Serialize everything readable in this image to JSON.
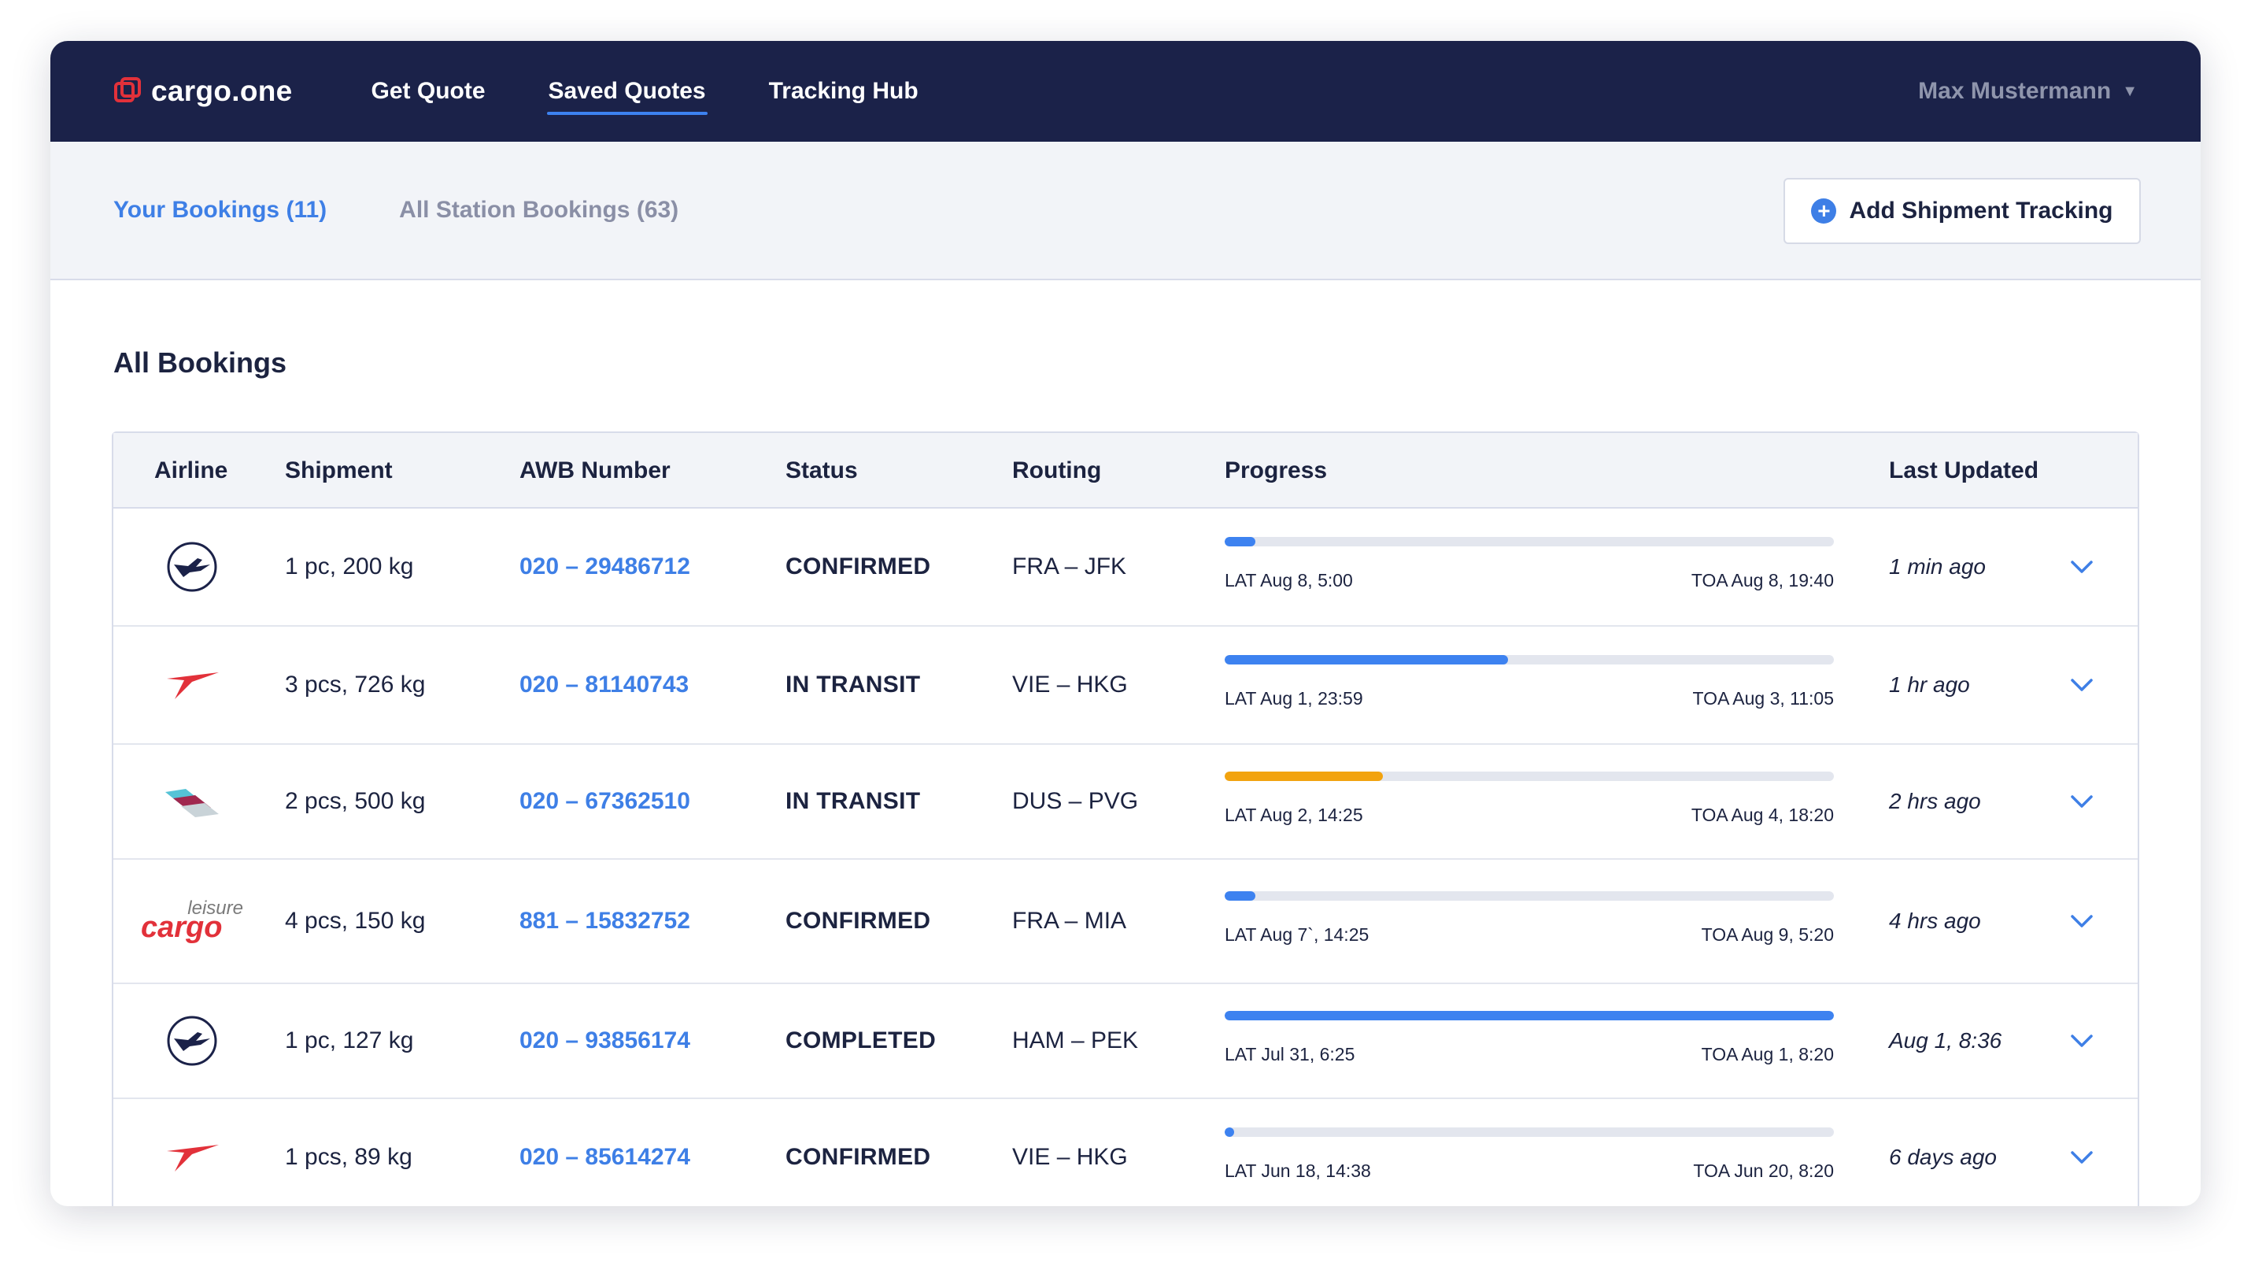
{
  "nav": {
    "logo_text": "cargo.one",
    "links": [
      {
        "label": "Get Quote"
      },
      {
        "label": "Saved Quotes"
      },
      {
        "label": "Tracking Hub"
      }
    ],
    "user_name": "Max Mustermann"
  },
  "subnav": {
    "tabs": [
      {
        "label": "Your Bookings (11)"
      },
      {
        "label": "All Station Bookings (63)"
      }
    ],
    "add_button_label": "Add Shipment Tracking"
  },
  "main": {
    "title": "All Bookings",
    "columns": {
      "airline": "Airline",
      "shipment": "Shipment",
      "awb": "AWB Number",
      "status": "Status",
      "routing": "Routing",
      "progress": "Progress",
      "updated": "Last Updated"
    },
    "rows": [
      {
        "airline": "lufthansa",
        "shipment": "1 pc, 200 kg",
        "awb": "020 – 29486712",
        "status": "CONFIRMED",
        "routing": "FRA – JFK",
        "progress": 0.05,
        "bar_color": "#3d82f0",
        "lat": "LAT Aug 8, 5:00",
        "toa": "TOA Aug 8, 19:40",
        "updated": "1 min ago"
      },
      {
        "airline": "austrian",
        "shipment": "3 pcs, 726 kg",
        "awb": "020 – 81140743",
        "status": "IN TRANSIT",
        "routing": "VIE – HKG",
        "progress": 0.465,
        "bar_color": "#3d82f0",
        "lat": "LAT Aug 1, 23:59",
        "toa": "TOA Aug 3, 11:05",
        "updated": "1 hr ago"
      },
      {
        "airline": "eurowings",
        "shipment": "2 pcs, 500 kg",
        "awb": "020 – 67362510",
        "status": "IN TRANSIT",
        "routing": "DUS – PVG",
        "progress": 0.26,
        "bar_color": "#f2a30f",
        "lat": "LAT Aug 2, 14:25",
        "toa": "TOA Aug 4, 18:20",
        "updated": "2 hrs ago"
      },
      {
        "airline": "leisure-cargo",
        "shipment": "4 pcs, 150 kg",
        "awb": "881 – 15832752",
        "status": "CONFIRMED",
        "routing": "FRA – MIA",
        "progress": 0.05,
        "bar_color": "#3d82f0",
        "lat": "LAT Aug 7`, 14:25",
        "toa": "TOA Aug 9, 5:20",
        "updated": "4 hrs ago"
      },
      {
        "airline": "lufthansa",
        "shipment": "1 pc, 127 kg",
        "awb": "020 – 93856174",
        "status": "COMPLETED",
        "routing": "HAM – PEK",
        "progress": 1.0,
        "bar_color": "#3d82f0",
        "lat": "LAT Jul 31, 6:25",
        "toa": "TOA Aug 1, 8:20",
        "updated": "Aug 1, 8:36"
      },
      {
        "airline": "austrian",
        "shipment": "1 pcs, 89 kg",
        "awb": "020 – 85614274",
        "status": "CONFIRMED",
        "routing": "VIE – HKG",
        "progress": 0.012,
        "bar_color": "#3d82f0",
        "lat": "LAT Jun 18, 14:38",
        "toa": "TOA Jun 20, 8:20",
        "updated": "6 days ago"
      }
    ],
    "leisure_logo": {
      "top": "leisure",
      "bottom": "cargo"
    }
  },
  "colors": {
    "accent": "#3e7fe6",
    "nav_bg": "#1b2249",
    "brand_red": "#e2313a"
  }
}
